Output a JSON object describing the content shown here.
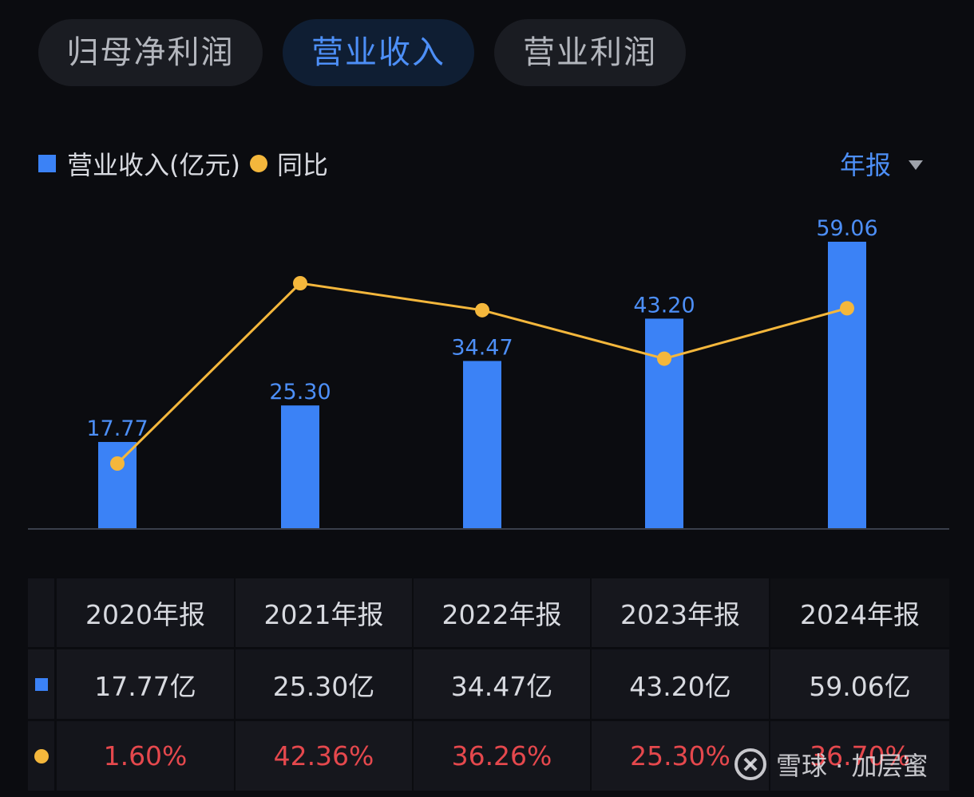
{
  "tabs": [
    {
      "label": "归母净利润",
      "active": false
    },
    {
      "label": "营业收入",
      "active": true
    },
    {
      "label": "营业利润",
      "active": false
    }
  ],
  "legend": {
    "bar_label": "营业收入(亿元)",
    "line_label": "同比"
  },
  "period_selector": {
    "label": "年报",
    "icon": "caret-down-icon"
  },
  "colors": {
    "bar": "#3b82f6",
    "line": "#f4b73c",
    "active_tab_text": "#4d8ff7",
    "negative": "#e5484d"
  },
  "chart_data": {
    "type": "bar",
    "categories": [
      "2020年报",
      "2021年报",
      "2022年报",
      "2023年报",
      "2024年报"
    ],
    "series": [
      {
        "name": "营业收入(亿元)",
        "type": "bar",
        "values": [
          17.77,
          25.3,
          34.47,
          43.2,
          59.06
        ],
        "labels": [
          "17.77",
          "25.30",
          "34.47",
          "43.20",
          "59.06"
        ]
      },
      {
        "name": "同比",
        "type": "line",
        "unit": "%",
        "values": [
          1.6,
          42.36,
          36.26,
          25.3,
          36.7
        ]
      }
    ],
    "ylim": [
      0,
      65
    ],
    "grid": false,
    "legend": "top-left"
  },
  "table": {
    "headers": [
      "2020年报",
      "2021年报",
      "2022年报",
      "2023年报",
      "2024年报"
    ],
    "revenue_row": [
      "17.77亿",
      "25.30亿",
      "34.47亿",
      "43.20亿",
      "59.06亿"
    ],
    "growth_row": [
      "1.60%",
      "42.36%",
      "36.26%",
      "25.30%",
      "36.70%"
    ]
  },
  "watermark": {
    "text": "雪球 · 加层蜜"
  }
}
